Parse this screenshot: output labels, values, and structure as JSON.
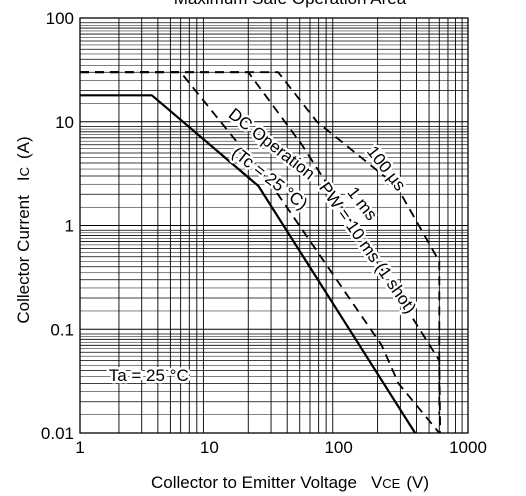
{
  "chart_data": {
    "type": "line",
    "title": "Maximum Safe Operation Area",
    "xlabel": "Collector to Emitter Voltage",
    "xlabel_symbol": "V",
    "xlabel_subscript": "CE",
    "xlabel_unit": "(V)",
    "ylabel": "Collector Current",
    "ylabel_symbol": "I",
    "ylabel_subscript": "C",
    "ylabel_unit": "(A)",
    "xscale": "log",
    "yscale": "log",
    "xlim": [
      1,
      1000
    ],
    "ylim": [
      0.01,
      100
    ],
    "grid": true,
    "x_ticks": [
      {
        "value": 1,
        "label": "1"
      },
      {
        "value": 10,
        "label": "10"
      },
      {
        "value": 100,
        "label": "100"
      },
      {
        "value": 1000,
        "label": "1000"
      }
    ],
    "y_ticks": [
      {
        "value": 0.01,
        "label": "0.01"
      },
      {
        "value": 0.1,
        "label": "0.1"
      },
      {
        "value": 1,
        "label": "1"
      },
      {
        "value": 10,
        "label": "10"
      },
      {
        "value": 100,
        "label": "100"
      }
    ],
    "series": [
      {
        "style": "solid",
        "points": [
          [
            1,
            18
          ],
          [
            3.6,
            18
          ],
          [
            24,
            2.4
          ],
          [
            390,
            0.01
          ]
        ]
      },
      {
        "style": "dashed",
        "points": [
          [
            1,
            30
          ],
          [
            6,
            30
          ],
          [
            30,
            2.5
          ],
          [
            215,
            0.07
          ],
          [
            290,
            0.03
          ],
          [
            600,
            0.01
          ]
        ]
      },
      {
        "style": "dashed",
        "points": [
          [
            1,
            30
          ],
          [
            20,
            30
          ],
          [
            52,
            6
          ],
          [
            210,
            0.4
          ],
          [
            600,
            0.05
          ],
          [
            610,
            0.01
          ]
        ]
      },
      {
        "style": "dashed",
        "points": [
          [
            1,
            30
          ],
          [
            34,
            30
          ],
          [
            68,
            10
          ],
          [
            280,
            2.4
          ],
          [
            600,
            0.45
          ],
          [
            600,
            0.015
          ]
        ]
      }
    ],
    "annotations": [
      {
        "text": "DC Operation",
        "x": 30,
        "y": 6,
        "rotate": 38
      },
      {
        "text": "(Tc = 25 °C)",
        "x": 29,
        "y": 2.8,
        "rotate": 38
      },
      {
        "text": "100 µs",
        "x": 230,
        "y": 3.5,
        "rotate": 52
      },
      {
        "text": "1 ms",
        "x": 150,
        "y": 1.6,
        "rotate": 52
      },
      {
        "text": "PW = 10 ms (1 shot)",
        "x": 165,
        "y": 0.6,
        "rotate": 55
      },
      {
        "text": "Ta = 25 °C",
        "x": 3.4,
        "y": 0.035,
        "rotate": 0
      }
    ]
  }
}
